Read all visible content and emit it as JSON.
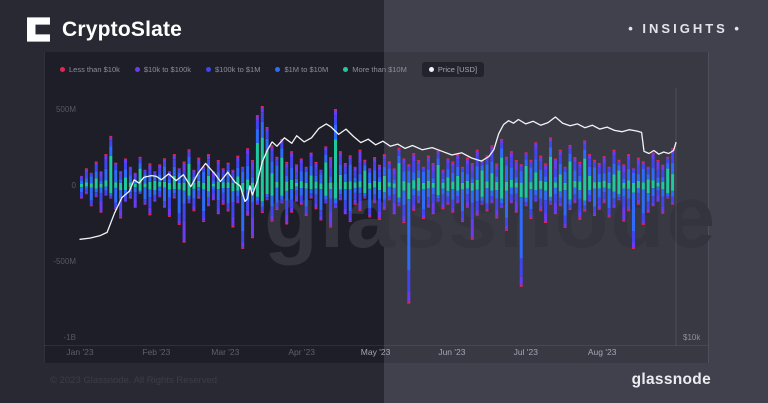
{
  "header": {
    "brand": "CryptoSlate",
    "badge": "• INSIGHTS •"
  },
  "watermark": "glassnode",
  "footer": {
    "copyright": "© 2023 Glassnode. All Rights Reserved",
    "brand": "glassnode"
  },
  "colors": {
    "bg_left": "#292933",
    "bg_right": "#41414d",
    "chart_bg_left": "#1e1e28",
    "chart_bg_right": "#393944",
    "price_line": "#f2f3f7"
  },
  "chart_data": {
    "type": "bar",
    "title": "",
    "description": "Stacked exchange netflow volume by transaction size (USD) with BTC price overlay, Jan–Aug 2023",
    "legend": [
      {
        "label": "Less than $10k",
        "color": "#e32552"
      },
      {
        "label": "$10k to $100k",
        "color": "#6b3bf2"
      },
      {
        "label": "$100k to $1M",
        "color": "#4145f0"
      },
      {
        "label": "$1M to $10M",
        "color": "#2f6bfa"
      },
      {
        "label": "More than $10M",
        "color": "#1ec9a0"
      },
      {
        "label": "Price [USD]",
        "color": "#f2f3f7"
      }
    ],
    "left_axis": {
      "ticks": [
        "500M",
        "0",
        "-500M",
        "-1B"
      ],
      "values_M": [
        500,
        0,
        -500,
        -1000
      ]
    },
    "right_axis": {
      "type": "log",
      "tick": "$10k",
      "tick_value_usd": 10000
    },
    "x_axis": {
      "ticks": [
        "Jan '23",
        "Feb '23",
        "Mar '23",
        "Apr '23",
        "May '23",
        "Jun '23",
        "Jul '23",
        "Aug '23"
      ],
      "month_start_days": [
        0,
        31,
        59,
        90,
        120,
        151,
        181,
        212
      ]
    },
    "bars_unit": "million USD per 2-day bin, [inflow, outflow, mix-index]",
    "series_mixes": [
      [
        0.03,
        0.14,
        0.3,
        0.38,
        0.15
      ],
      [
        0.02,
        0.06,
        0.12,
        0.2,
        0.6
      ],
      [
        0.02,
        0.08,
        0.18,
        0.6,
        0.12
      ],
      [
        0.03,
        0.35,
        0.3,
        0.22,
        0.1
      ],
      [
        0.05,
        0.2,
        0.35,
        0.25,
        0.15
      ],
      [
        0.03,
        0.12,
        0.25,
        0.3,
        0.3
      ]
    ],
    "bars": [
      [
        60,
        -90,
        0
      ],
      [
        110,
        -60,
        4
      ],
      [
        80,
        -140,
        2
      ],
      [
        150,
        -80,
        5
      ],
      [
        90,
        -180,
        3
      ],
      [
        200,
        -70,
        0
      ],
      [
        320,
        -90,
        1
      ],
      [
        140,
        -160,
        2
      ],
      [
        90,
        -220,
        4
      ],
      [
        170,
        -110,
        5
      ],
      [
        120,
        -90,
        0
      ],
      [
        80,
        -150,
        3
      ],
      [
        180,
        -60,
        1
      ],
      [
        100,
        -130,
        2
      ],
      [
        140,
        -200,
        4
      ],
      [
        90,
        -110,
        5
      ],
      [
        130,
        -80,
        0
      ],
      [
        170,
        -150,
        2
      ],
      [
        90,
        -210,
        4
      ],
      [
        200,
        -90,
        5
      ],
      [
        110,
        -260,
        2
      ],
      [
        150,
        -380,
        3
      ],
      [
        230,
        -120,
        1
      ],
      [
        100,
        -170,
        0
      ],
      [
        180,
        -90,
        4
      ],
      [
        120,
        -240,
        2
      ],
      [
        200,
        -140,
        5
      ],
      [
        90,
        -100,
        3
      ],
      [
        160,
        -190,
        0
      ],
      [
        110,
        -130,
        4
      ],
      [
        140,
        -170,
        2
      ],
      [
        100,
        -280,
        4
      ],
      [
        190,
        -120,
        5
      ],
      [
        120,
        -420,
        2
      ],
      [
        240,
        -200,
        0
      ],
      [
        160,
        -350,
        3
      ],
      [
        460,
        -130,
        1
      ],
      [
        520,
        -180,
        1
      ],
      [
        380,
        -100,
        1
      ],
      [
        260,
        -240,
        5
      ],
      [
        180,
        -160,
        2
      ],
      [
        300,
        -120,
        1
      ],
      [
        150,
        -260,
        4
      ],
      [
        220,
        -180,
        0
      ],
      [
        130,
        -110,
        3
      ],
      [
        170,
        -130,
        0
      ],
      [
        120,
        -200,
        2
      ],
      [
        210,
        -90,
        5
      ],
      [
        150,
        -160,
        4
      ],
      [
        100,
        -230,
        2
      ],
      [
        250,
        -120,
        1
      ],
      [
        180,
        -280,
        3
      ],
      [
        500,
        -150,
        1
      ],
      [
        220,
        -100,
        5
      ],
      [
        140,
        -190,
        0
      ],
      [
        190,
        -240,
        2
      ],
      [
        120,
        -130,
        4
      ],
      [
        230,
        -170,
        3
      ],
      [
        160,
        -90,
        1
      ],
      [
        110,
        -210,
        2
      ],
      [
        180,
        -120,
        0
      ],
      [
        130,
        -230,
        4
      ],
      [
        200,
        -160,
        5
      ],
      [
        150,
        -100,
        2
      ],
      [
        110,
        -190,
        3
      ],
      [
        240,
        -140,
        1
      ],
      [
        170,
        -250,
        0
      ],
      [
        130,
        -780,
        2
      ],
      [
        210,
        -170,
        4
      ],
      [
        160,
        -120,
        5
      ],
      [
        120,
        -220,
        2
      ],
      [
        190,
        -150,
        0
      ],
      [
        140,
        -190,
        3
      ],
      [
        220,
        -110,
        1
      ],
      [
        100,
        -160,
        4
      ],
      [
        170,
        -130,
        5
      ],
      [
        150,
        -180,
        0
      ],
      [
        200,
        -120,
        5
      ],
      [
        120,
        -240,
        2
      ],
      [
        180,
        -150,
        4
      ],
      [
        140,
        -360,
        3
      ],
      [
        230,
        -200,
        0
      ],
      [
        160,
        -130,
        1
      ],
      [
        190,
        -170,
        2
      ],
      [
        260,
        -120,
        5
      ],
      [
        140,
        -220,
        4
      ],
      [
        300,
        -150,
        1
      ],
      [
        180,
        -300,
        2
      ],
      [
        220,
        -120,
        0
      ],
      [
        160,
        -180,
        3
      ],
      [
        130,
        -670,
        2
      ],
      [
        210,
        -140,
        1
      ],
      [
        160,
        -220,
        2
      ],
      [
        280,
        -110,
        5
      ],
      [
        190,
        -170,
        0
      ],
      [
        140,
        -250,
        4
      ],
      [
        310,
        -130,
        1
      ],
      [
        170,
        -190,
        3
      ],
      [
        230,
        -140,
        5
      ],
      [
        120,
        -280,
        2
      ],
      [
        260,
        -160,
        1
      ],
      [
        180,
        -120,
        0
      ],
      [
        150,
        -230,
        4
      ],
      [
        290,
        -170,
        1
      ],
      [
        200,
        -110,
        5
      ],
      [
        160,
        -200,
        2
      ],
      [
        140,
        -160,
        0
      ],
      [
        190,
        -120,
        4
      ],
      [
        120,
        -210,
        2
      ],
      [
        230,
        -150,
        5
      ],
      [
        160,
        -100,
        1
      ],
      [
        130,
        -240,
        3
      ],
      [
        200,
        -170,
        0
      ],
      [
        110,
        -420,
        2
      ],
      [
        180,
        -130,
        4
      ],
      [
        150,
        -260,
        2
      ],
      [
        120,
        -180,
        5
      ],
      [
        210,
        -140,
        0
      ],
      [
        160,
        -110,
        3
      ],
      [
        130,
        -190,
        4
      ],
      [
        180,
        -90,
        1
      ],
      [
        240,
        -130,
        5
      ]
    ],
    "price_usd_k": [
      [
        0,
        16.6
      ],
      [
        4,
        16.7
      ],
      [
        8,
        16.9
      ],
      [
        11,
        17.2
      ],
      [
        14,
        19.0
      ],
      [
        17,
        20.6
      ],
      [
        20,
        21.3
      ],
      [
        22,
        22.6
      ],
      [
        24,
        22.2
      ],
      [
        26,
        22.9
      ],
      [
        29,
        23.1
      ],
      [
        31,
        23.0
      ],
      [
        33,
        22.6
      ],
      [
        36,
        23.3
      ],
      [
        39,
        22.5
      ],
      [
        42,
        23.2
      ],
      [
        45,
        21.8
      ],
      [
        48,
        23.4
      ],
      [
        51,
        24.6
      ],
      [
        53,
        23.9
      ],
      [
        55,
        23.2
      ],
      [
        57,
        22.4
      ],
      [
        60,
        23.5
      ],
      [
        63,
        22.3
      ],
      [
        65,
        21.9
      ],
      [
        67,
        20.2
      ],
      [
        68,
        20.5
      ],
      [
        69,
        21.9
      ],
      [
        70,
        20.9
      ],
      [
        72,
        22.4
      ],
      [
        74,
        24.8
      ],
      [
        76,
        26.3
      ],
      [
        78,
        27.5
      ],
      [
        80,
        26.9
      ],
      [
        83,
        28.1
      ],
      [
        86,
        27.3
      ],
      [
        88,
        28.4
      ],
      [
        91,
        27.5
      ],
      [
        94,
        28.1
      ],
      [
        97,
        29.5
      ],
      [
        100,
        30.2
      ],
      [
        102,
        29.7
      ],
      [
        105,
        28.6
      ],
      [
        108,
        29.4
      ],
      [
        111,
        28.3
      ],
      [
        114,
        27.4
      ],
      [
        117,
        27.9
      ],
      [
        120,
        27.1
      ],
      [
        123,
        27.6
      ],
      [
        126,
        26.9
      ],
      [
        129,
        27.2
      ],
      [
        132,
        26.6
      ],
      [
        135,
        27.0
      ],
      [
        139,
        26.4
      ],
      [
        143,
        26.7
      ],
      [
        147,
        26.2
      ],
      [
        151,
        25.7
      ],
      [
        155,
        26.0
      ],
      [
        159,
        25.3
      ],
      [
        163,
        24.9
      ],
      [
        166,
        25.5
      ],
      [
        168,
        26.4
      ],
      [
        170,
        28.7
      ],
      [
        172,
        30.1
      ],
      [
        174,
        30.7
      ],
      [
        176,
        30.3
      ],
      [
        178,
        30.9
      ],
      [
        181,
        30.2
      ],
      [
        184,
        30.6
      ],
      [
        187,
        30.0
      ],
      [
        190,
        30.4
      ],
      [
        193,
        31.3
      ],
      [
        196,
        30.3
      ],
      [
        199,
        29.9
      ],
      [
        202,
        30.2
      ],
      [
        205,
        29.6
      ],
      [
        208,
        30.0
      ],
      [
        211,
        29.4
      ],
      [
        214,
        29.7
      ],
      [
        217,
        29.2
      ],
      [
        220,
        29.0
      ],
      [
        223,
        29.3
      ],
      [
        226,
        29.1
      ],
      [
        228,
        28.9
      ],
      [
        229,
        26.2
      ],
      [
        231,
        25.9
      ],
      [
        233,
        26.3
      ],
      [
        235,
        25.8
      ],
      [
        237,
        26.1
      ],
      [
        239,
        25.9
      ],
      [
        241,
        26.3
      ],
      [
        242,
        27.4
      ]
    ]
  }
}
